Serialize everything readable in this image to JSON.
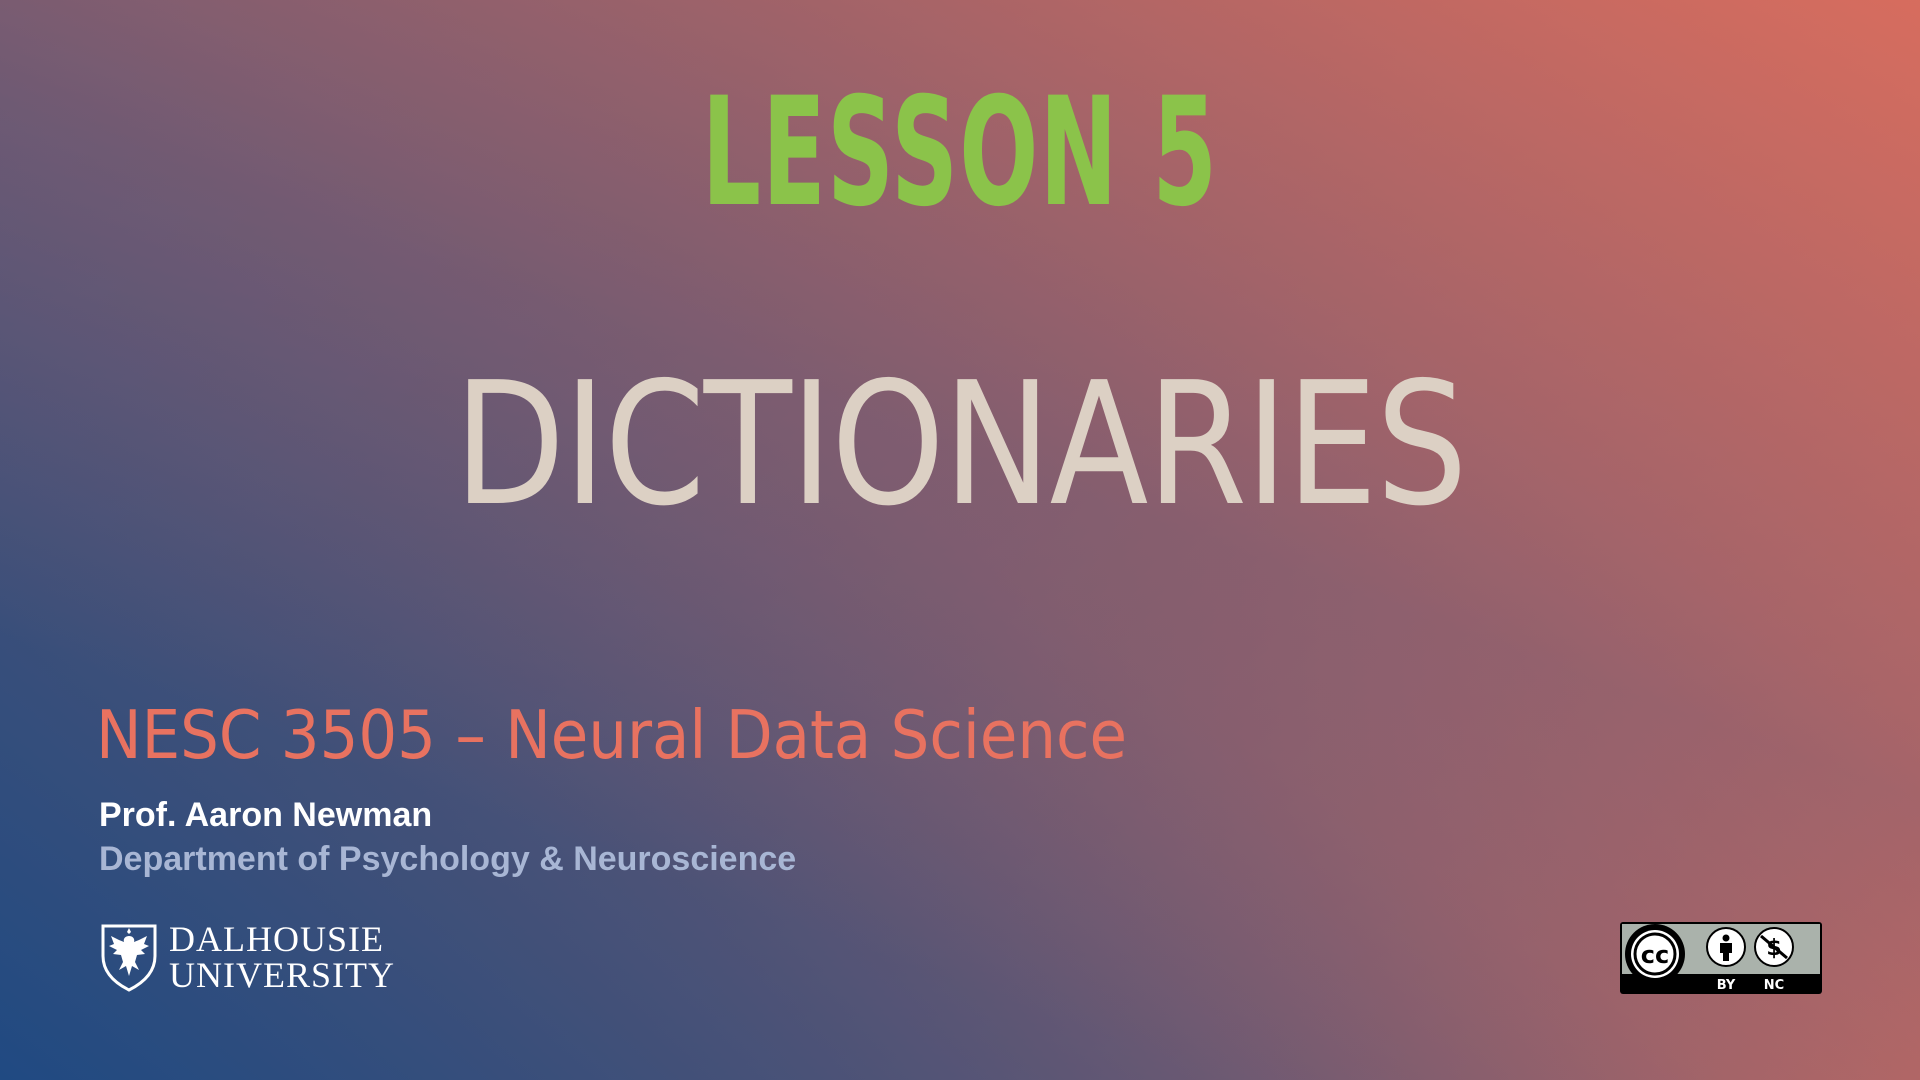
{
  "slide": {
    "lesson": "LESSON 5",
    "title": "DICTIONARIES",
    "course": "NESC 3505 – Neural Data Science",
    "instructor": "Prof. Aaron Newman",
    "department": "Department of Psychology & Neuroscience"
  },
  "logo": {
    "line1": "DALHOUSIE",
    "line2": "UNIVERSITY",
    "icon": "dalhousie-crest-icon"
  },
  "license": {
    "icon": "creative-commons-by-nc-icon",
    "cc_mark": "cc",
    "by_label": "BY",
    "nc_label": "NC"
  },
  "colors": {
    "lesson": "#8bc34a",
    "title": "#dcd0c4",
    "course": "#e87260",
    "instructor": "#ffffff",
    "department": "#a8b6d4",
    "background_start": "#204a82",
    "background_end": "#dc6f5e"
  }
}
